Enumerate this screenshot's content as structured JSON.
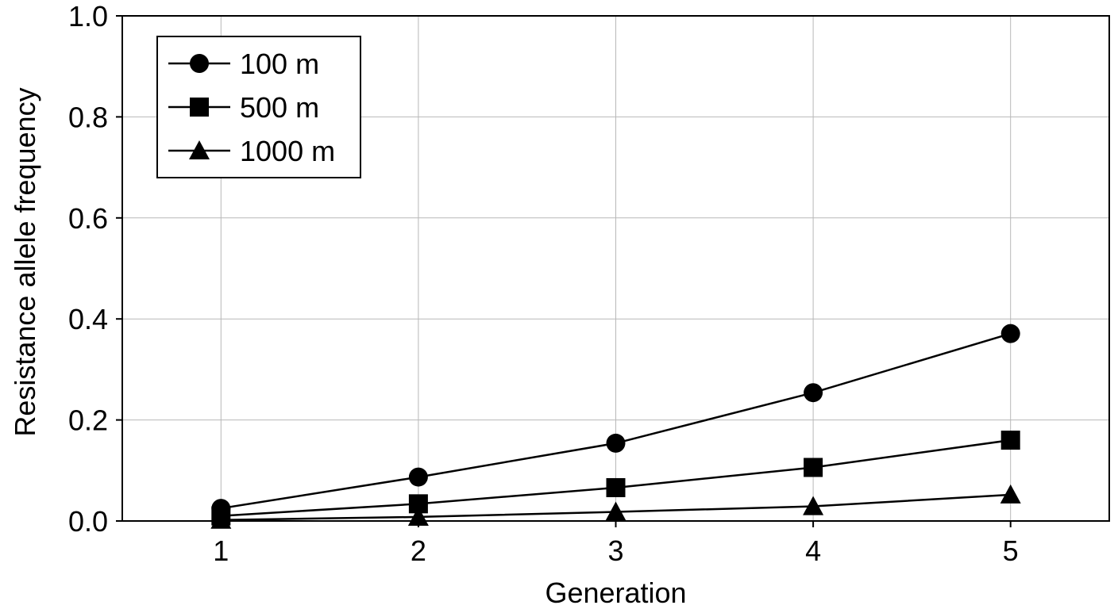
{
  "chart_data": {
    "type": "line",
    "title": "",
    "xlabel": "Generation",
    "ylabel": "Resistance allele frequency",
    "x": [
      1,
      2,
      3,
      4,
      5
    ],
    "xlim": [
      0.5,
      5.5
    ],
    "ylim": [
      0,
      1.0
    ],
    "x_ticks": [
      "1",
      "2",
      "3",
      "4",
      "5"
    ],
    "y_ticks": [
      "0.0",
      "0.2",
      "0.4",
      "0.6",
      "0.8",
      "1.0"
    ],
    "grid": true,
    "legend_position": "top-left",
    "series": [
      {
        "name": "100 m",
        "marker": "circle",
        "color": "#000000",
        "values": [
          0.025,
          0.087,
          0.154,
          0.254,
          0.371
        ]
      },
      {
        "name": "500 m",
        "marker": "square",
        "color": "#000000",
        "values": [
          0.01,
          0.034,
          0.066,
          0.106,
          0.16
        ]
      },
      {
        "name": "1000 m",
        "marker": "triangle",
        "color": "#000000",
        "values": [
          0.002,
          0.008,
          0.018,
          0.029,
          0.052
        ]
      }
    ]
  }
}
